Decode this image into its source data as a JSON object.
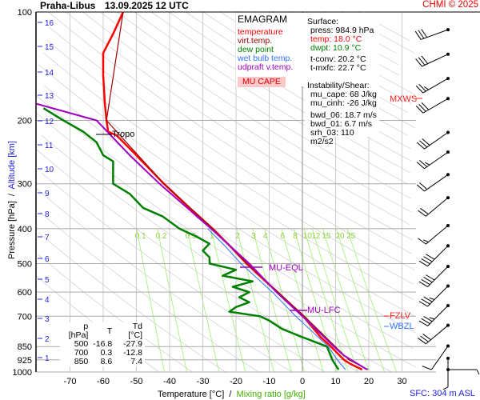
{
  "header": {
    "station": "Praha-Libus",
    "datetime": "13.09.2025 12 UTC",
    "credit": "CHMI © 2025"
  },
  "legend": {
    "title": "EMAGRAM",
    "items": [
      {
        "label": "temperature",
        "color": "#ff0000"
      },
      {
        "label": "virt.temp.",
        "color": "#a00000"
      },
      {
        "label": "dew point",
        "color": "#008000"
      },
      {
        "label": "wet bulb temp.",
        "color": "#3070ff"
      },
      {
        "label": "udpraft v.temp.",
        "color": "#a000c0"
      }
    ],
    "cape_label": "MU CAPE"
  },
  "info": {
    "surface_title": "Surface:",
    "press": "press: 984.9 hPa",
    "temp": "temp: 18.0 °C",
    "dwpt": "dwpt: 10.9 °C",
    "tconv": "t-conv: 20.2 °C",
    "tmxfc": "t-mxfc: 22.7 °C",
    "inst_title": "Instability/Shear:",
    "mu_cape": "mu_cape: 68 J/kg",
    "mu_cinh": "mu_cinh: -26 J/kg",
    "bwd_06": "bwd_06: 18.7 m/s",
    "bwd_01": "bwd_01: 6.7 m/s",
    "srh_03": "srh_03: 110 m2/s2"
  },
  "table": {
    "headers": [
      "p [hPa]",
      "T",
      "Td [°C]"
    ],
    "rows": [
      [
        "500",
        "-16.8",
        "-27.9"
      ],
      [
        "700",
        "0.3",
        "-12.8"
      ],
      [
        "850",
        "8.6",
        "7.4"
      ]
    ]
  },
  "annotations": {
    "tropo": "Tropo",
    "mu_eql": "MU-EQL",
    "mu_lfc": "MU-LFC",
    "mxws": "MXWS",
    "fzlv": "FZLV",
    "wbzl": "WBZL",
    "sfc": "SFC: 304 m ASL"
  },
  "chart_data": {
    "type": "line",
    "subtype": "emagram",
    "xlabel": "Temperature [°C]",
    "xlabel2": "Mixing ratio [g/kg]",
    "ylabel": "Pressure [hPa]",
    "ylabel2": "Altitude [km]",
    "xlim": [
      -80,
      30
    ],
    "ylim": [
      1000,
      100
    ],
    "yscale": "log",
    "x_ticks": [
      "-70",
      "-60",
      "-50",
      "-40",
      "-30",
      "-20",
      "-10",
      "0",
      "10",
      "20",
      "30"
    ],
    "p_ticks": [
      "100",
      "200",
      "300",
      "400",
      "500",
      "600",
      "700",
      "850",
      "925",
      "1000"
    ],
    "km_ticks": [
      "1",
      "2",
      "3",
      "4",
      "5",
      "6",
      "7",
      "8",
      "9",
      "10",
      "11",
      "12",
      "13",
      "14",
      "15",
      "16"
    ],
    "mixing_ratio_labels": [
      "0.1",
      "0.2",
      "0.5",
      "1",
      "2",
      "3",
      "4",
      "6",
      "8",
      "10",
      "12",
      "15",
      "20",
      "25"
    ],
    "series": [
      {
        "name": "temperature",
        "color": "#ff0000",
        "points": [
          [
            985,
            18
          ],
          [
            950,
            14.5
          ],
          [
            925,
            12.5
          ],
          [
            850,
            8.6
          ],
          [
            800,
            5.5
          ],
          [
            750,
            3
          ],
          [
            700,
            0.3
          ],
          [
            650,
            -3.5
          ],
          [
            600,
            -7.5
          ],
          [
            550,
            -12
          ],
          [
            500,
            -16.8
          ],
          [
            450,
            -21.5
          ],
          [
            400,
            -27
          ],
          [
            350,
            -34
          ],
          [
            300,
            -41.7
          ],
          [
            250,
            -50
          ],
          [
            220,
            -56
          ],
          [
            215,
            -58.5
          ],
          [
            200,
            -59
          ],
          [
            180,
            -59.5
          ],
          [
            150,
            -60
          ],
          [
            130,
            -60
          ],
          [
            115,
            -57
          ],
          [
            100,
            -54
          ]
        ]
      },
      {
        "name": "virt.temp.",
        "color": "#a00000",
        "points": [
          [
            985,
            19.8
          ],
          [
            925,
            14
          ],
          [
            850,
            9.9
          ],
          [
            700,
            0.6
          ],
          [
            500,
            -16.7
          ],
          [
            400,
            -27
          ],
          [
            300,
            -41.7
          ],
          [
            200,
            -59
          ],
          [
            100,
            -54
          ]
        ]
      },
      {
        "name": "dew point",
        "color": "#008000",
        "points": [
          [
            985,
            10.9
          ],
          [
            925,
            9
          ],
          [
            850,
            7.4
          ],
          [
            800,
            0
          ],
          [
            760,
            -6
          ],
          [
            720,
            -10
          ],
          [
            700,
            -12.8
          ],
          [
            680,
            -22
          ],
          [
            660,
            -20
          ],
          [
            640,
            -16
          ],
          [
            620,
            -19
          ],
          [
            600,
            -16
          ],
          [
            580,
            -21
          ],
          [
            560,
            -15
          ],
          [
            540,
            -24
          ],
          [
            520,
            -20
          ],
          [
            500,
            -27.9
          ],
          [
            480,
            -28
          ],
          [
            460,
            -30
          ],
          [
            440,
            -28
          ],
          [
            420,
            -32
          ],
          [
            400,
            -37
          ],
          [
            370,
            -42
          ],
          [
            350,
            -48
          ],
          [
            320,
            -52
          ],
          [
            300,
            -57
          ],
          [
            280,
            -57
          ],
          [
            260,
            -57
          ],
          [
            250,
            -60
          ],
          [
            230,
            -62
          ],
          [
            215,
            -66
          ],
          [
            200,
            -72
          ],
          [
            185,
            -78
          ]
        ]
      },
      {
        "name": "wet bulb temp.",
        "color": "#3070ff",
        "points": [
          [
            985,
            13
          ],
          [
            925,
            10.5
          ],
          [
            850,
            7.8
          ],
          [
            750,
            1.5
          ],
          [
            700,
            -2
          ],
          [
            600,
            -9
          ],
          [
            500,
            -18.5
          ],
          [
            450,
            -23
          ],
          [
            400,
            -28.5
          ]
        ]
      },
      {
        "name": "udpraft v.temp.",
        "color": "#a000c0",
        "points": [
          [
            985,
            19.5
          ],
          [
            900,
            12.5
          ],
          [
            850,
            9.5
          ],
          [
            700,
            0
          ],
          [
            600,
            -7.8
          ],
          [
            500,
            -16
          ],
          [
            400,
            -27.5
          ],
          [
            300,
            -43
          ],
          [
            250,
            -52
          ],
          [
            200,
            -62
          ],
          [
            180,
            -80
          ]
        ]
      }
    ],
    "wind_barbs": [
      [
        112,
        250,
        30
      ],
      [
        131,
        245,
        30
      ],
      [
        153,
        240,
        25
      ],
      [
        174,
        240,
        30
      ],
      [
        216,
        235,
        30
      ],
      [
        245,
        235,
        25
      ],
      [
        283,
        235,
        20
      ],
      [
        328,
        230,
        20
      ],
      [
        392,
        230,
        15
      ],
      [
        446,
        225,
        40
      ],
      [
        509,
        225,
        40
      ],
      [
        577,
        225,
        35
      ],
      [
        654,
        225,
        35
      ],
      [
        742,
        230,
        30
      ],
      [
        847,
        215,
        10
      ],
      [
        916,
        180,
        5
      ],
      [
        985,
        90,
        5
      ]
    ]
  }
}
